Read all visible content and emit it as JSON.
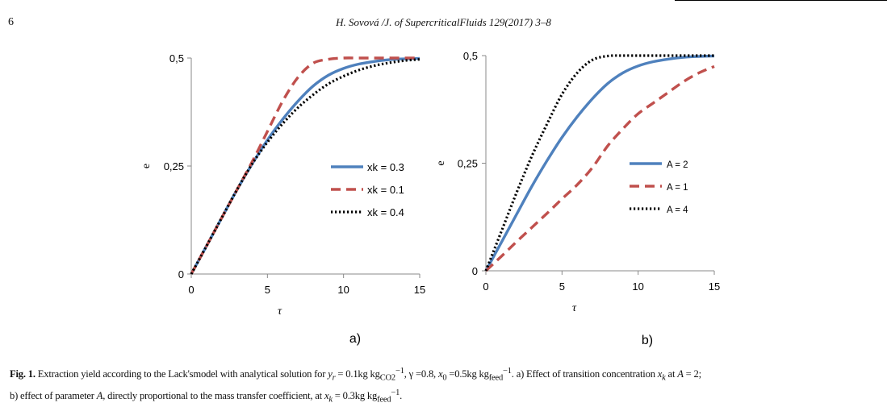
{
  "page": {
    "number": "6",
    "running_header": "H. Sovová /J. of SupercriticalFluids 129(2017) 3–8"
  },
  "caption": {
    "label": "Fig. 1.",
    "text": "Extraction yield according to the Lack'smodel with analytical solution for y_r = 0.1kg kg_CO2^-1, γ =0.8, x_0 =0.5kg kg_feed^-1. a) Effect of transition concentration x_k at A = 2; b) effect of parameter A, directly proportional to the mass transfer coefficient, at x_k = 0.3kg kg_feed^-1."
  },
  "chart_data": [
    {
      "type": "line",
      "panel_label": "a)",
      "xlabel": "τ",
      "ylabel": "e",
      "xlim": [
        0,
        15
      ],
      "ylim": [
        0,
        0.5
      ],
      "x_ticks": [
        "0",
        "5",
        "10",
        "15"
      ],
      "y_ticks": [
        "0",
        "0,25",
        "0,5"
      ],
      "legend_position": "center-right",
      "grid": false,
      "x": [
        0,
        1,
        2,
        3,
        4,
        5,
        6,
        7,
        8,
        9,
        10,
        11,
        12,
        13,
        14,
        15
      ],
      "series": [
        {
          "name": "xk = 0.3",
          "color": "#4f81bd",
          "style": "solid",
          "values": [
            0,
            0.065,
            0.13,
            0.195,
            0.255,
            0.31,
            0.358,
            0.4,
            0.435,
            0.46,
            0.476,
            0.486,
            0.492,
            0.496,
            0.498,
            0.499
          ]
        },
        {
          "name": "xk = 0.1",
          "color": "#c0504d",
          "style": "dash",
          "values": [
            0,
            0.065,
            0.13,
            0.195,
            0.26,
            0.33,
            0.4,
            0.455,
            0.488,
            0.497,
            0.5,
            0.5,
            0.5,
            0.5,
            0.5,
            0.5
          ]
        },
        {
          "name": "xk = 0.4",
          "color": "#000000",
          "style": "dot",
          "values": [
            0,
            0.065,
            0.13,
            0.195,
            0.255,
            0.305,
            0.348,
            0.385,
            0.415,
            0.44,
            0.458,
            0.472,
            0.482,
            0.489,
            0.494,
            0.497
          ]
        }
      ]
    },
    {
      "type": "line",
      "panel_label": "b)",
      "xlabel": "τ",
      "ylabel": "e",
      "xlim": [
        0,
        15
      ],
      "ylim": [
        0,
        0.5
      ],
      "x_ticks": [
        "0",
        "5",
        "10",
        "15"
      ],
      "y_ticks": [
        "0",
        "0,25",
        "0,5"
      ],
      "legend_position": "center-right",
      "grid": false,
      "x": [
        0,
        1,
        2,
        3,
        4,
        5,
        6,
        7,
        8,
        9,
        10,
        11,
        12,
        13,
        14,
        15
      ],
      "series": [
        {
          "name": "A = 2",
          "color": "#4f81bd",
          "style": "solid",
          "values": [
            0,
            0.065,
            0.13,
            0.195,
            0.255,
            0.31,
            0.358,
            0.4,
            0.435,
            0.46,
            0.476,
            0.486,
            0.492,
            0.496,
            0.498,
            0.499
          ]
        },
        {
          "name": "A = 1",
          "color": "#c0504d",
          "style": "dash",
          "values": [
            0,
            0.033,
            0.067,
            0.1,
            0.133,
            0.167,
            0.2,
            0.24,
            0.29,
            0.33,
            0.365,
            0.39,
            0.415,
            0.44,
            0.46,
            0.475
          ]
        },
        {
          "name": "A = 4",
          "color": "#000000",
          "style": "dot",
          "values": [
            0,
            0.09,
            0.18,
            0.265,
            0.34,
            0.41,
            0.46,
            0.49,
            0.499,
            0.5,
            0.5,
            0.5,
            0.5,
            0.5,
            0.5,
            0.5
          ]
        }
      ]
    }
  ]
}
